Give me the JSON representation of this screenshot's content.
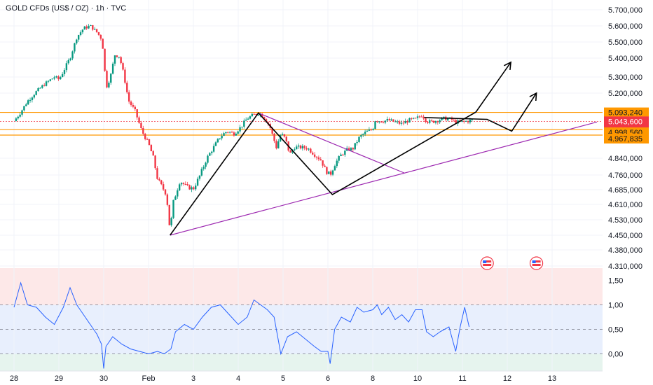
{
  "header": {
    "title": "GOLD CFDs (US$ / OZ) · 1h · TVC"
  },
  "colors": {
    "up": "#089981",
    "down": "#f23645",
    "level": "#ff9800",
    "trendline": "#9c27b0",
    "drawing": "#000000",
    "osc_line": "#2962ff",
    "osc_top_zone": "#fde8e8",
    "osc_mid_zone": "#e8effd",
    "osc_bottom_zone": "#e6f4ee",
    "price_tag": "#f23645"
  },
  "chart_data": [
    {
      "type": "line",
      "subtype": "candlestick",
      "title": "GOLD CFDs (US$ / OZ) · 1h · TVC",
      "x_ticks": [
        "28",
        "29",
        "30",
        "Feb",
        "3",
        "4",
        "5",
        "6",
        "8",
        "10",
        "11",
        "12",
        "13"
      ],
      "y_ticks": [
        "5.700,000",
        "5.600,000",
        "5.500,000",
        "5.400,000",
        "5.300,000",
        "5.200,000",
        "4.840,000",
        "4.760,000",
        "4.685,000",
        "4.610,000",
        "4.530,000",
        "4.450,000",
        "4.380,000",
        "4.310,000"
      ],
      "ylim": [
        4310,
        5700
      ],
      "xlim": [
        0,
        13
      ],
      "close_path": [
        [
          0.0,
          5045
        ],
        [
          0.15,
          5095
        ],
        [
          0.3,
          5155
        ],
        [
          0.5,
          5210
        ],
        [
          0.7,
          5260
        ],
        [
          0.9,
          5300
        ],
        [
          1.0,
          5285
        ],
        [
          1.1,
          5330
        ],
        [
          1.25,
          5400
        ],
        [
          1.4,
          5530
        ],
        [
          1.55,
          5585
        ],
        [
          1.7,
          5600
        ],
        [
          1.85,
          5560
        ],
        [
          1.95,
          5520
        ],
        [
          2.0,
          5430
        ],
        [
          2.05,
          5230
        ],
        [
          2.15,
          5300
        ],
        [
          2.25,
          5420
        ],
        [
          2.35,
          5410
        ],
        [
          2.45,
          5310
        ],
        [
          2.55,
          5160
        ],
        [
          2.7,
          5100
        ],
        [
          2.85,
          4990
        ],
        [
          3.0,
          4920
        ],
        [
          3.1,
          4850
        ],
        [
          3.2,
          4740
        ],
        [
          3.3,
          4700
        ],
        [
          3.4,
          4660
        ],
        [
          3.48,
          4470
        ],
        [
          3.55,
          4620
        ],
        [
          3.7,
          4730
        ],
        [
          3.85,
          4700
        ],
        [
          4.0,
          4690
        ],
        [
          4.15,
          4760
        ],
        [
          4.3,
          4840
        ],
        [
          4.45,
          4900
        ],
        [
          4.6,
          4960
        ],
        [
          4.75,
          4990
        ],
        [
          4.9,
          4975
        ],
        [
          5.05,
          5010
        ],
        [
          5.2,
          5060
        ],
        [
          5.35,
          5080
        ],
        [
          5.45,
          5090
        ],
        [
          5.55,
          5075
        ],
        [
          5.7,
          5020
        ],
        [
          5.85,
          4900
        ],
        [
          5.95,
          4975
        ],
        [
          6.05,
          4950
        ],
        [
          6.15,
          4860
        ],
        [
          6.25,
          4900
        ],
        [
          6.4,
          4900
        ],
        [
          6.55,
          4895
        ],
        [
          6.7,
          4860
        ],
        [
          6.85,
          4830
        ],
        [
          6.95,
          4780
        ],
        [
          7.05,
          4760
        ],
        [
          7.15,
          4810
        ],
        [
          7.3,
          4860
        ],
        [
          7.45,
          4890
        ],
        [
          7.55,
          4890
        ],
        [
          7.7,
          4955
        ],
        [
          7.85,
          4985
        ],
        [
          8.0,
          5000
        ],
        [
          8.05,
          5050
        ],
        [
          8.2,
          5045
        ],
        [
          8.35,
          5050
        ],
        [
          8.5,
          5040
        ],
        [
          8.65,
          5030
        ],
        [
          8.8,
          5050
        ],
        [
          8.95,
          5055
        ],
        [
          9.1,
          5080
        ],
        [
          9.2,
          5045
        ],
        [
          9.3,
          5040
        ],
        [
          9.45,
          5050
        ],
        [
          9.6,
          5060
        ],
        [
          9.75,
          5055
        ],
        [
          9.85,
          5040
        ],
        [
          10.0,
          5040
        ],
        [
          10.1,
          5045
        ],
        [
          10.2,
          5050
        ],
        [
          10.25,
          5055
        ]
      ],
      "price_levels": [
        5093.24,
        5043.6,
        4998.56,
        4967.835
      ],
      "last_price": "5.043,600",
      "countdown": "40:38",
      "level_labels": [
        "5.093,240",
        "4.998,560",
        "4.967,835"
      ],
      "trendlines": [
        {
          "from": [
            3.48,
            4450
          ],
          "to": [
            13.0,
            5040
          ]
        },
        {
          "from": [
            5.45,
            5090
          ],
          "to": [
            8.7,
            4770
          ]
        }
      ],
      "drawing_path": [
        [
          3.48,
          4450
        ],
        [
          5.45,
          5090
        ],
        [
          7.1,
          4660
        ],
        [
          10.3,
          5095
        ],
        [
          11.08,
          5378
        ]
      ],
      "drawing_path_2": [
        [
          9.15,
          5065
        ],
        [
          10.55,
          5055
        ],
        [
          11.1,
          4990
        ],
        [
          11.65,
          5200
        ]
      ],
      "events": [
        {
          "x": 10.55
        },
        {
          "x": 11.65
        }
      ]
    },
    {
      "type": "line",
      "title": "",
      "y_ticks": [
        "1,50",
        "1,00",
        "0,50",
        "0,00"
      ],
      "ylim": [
        -0.35,
        1.75
      ],
      "dashed_levels": [
        1.0,
        0.5,
        0.0
      ],
      "series": [
        {
          "points": [
            [
              0.0,
              0.95
            ],
            [
              0.15,
              1.45
            ],
            [
              0.3,
              1.0
            ],
            [
              0.5,
              0.95
            ],
            [
              0.7,
              0.75
            ],
            [
              0.9,
              0.6
            ],
            [
              1.1,
              0.95
            ],
            [
              1.25,
              1.35
            ],
            [
              1.4,
              1.0
            ],
            [
              1.55,
              0.8
            ],
            [
              1.7,
              0.6
            ],
            [
              1.85,
              0.4
            ],
            [
              1.95,
              0.2
            ],
            [
              2.0,
              -0.3
            ],
            [
              2.05,
              0.15
            ],
            [
              2.2,
              0.35
            ],
            [
              2.4,
              0.2
            ],
            [
              2.6,
              0.1
            ],
            [
              2.8,
              0.05
            ],
            [
              3.0,
              0.0
            ],
            [
              3.2,
              0.05
            ],
            [
              3.35,
              0.0
            ],
            [
              3.5,
              0.1
            ],
            [
              3.6,
              0.45
            ],
            [
              3.8,
              0.6
            ],
            [
              4.0,
              0.5
            ],
            [
              4.2,
              0.75
            ],
            [
              4.4,
              0.95
            ],
            [
              4.6,
              1.0
            ],
            [
              4.8,
              0.8
            ],
            [
              5.0,
              0.6
            ],
            [
              5.2,
              0.75
            ],
            [
              5.35,
              1.1
            ],
            [
              5.5,
              1.0
            ],
            [
              5.65,
              0.9
            ],
            [
              5.8,
              0.75
            ],
            [
              5.95,
              0.0
            ],
            [
              6.1,
              0.35
            ],
            [
              6.3,
              0.45
            ],
            [
              6.5,
              0.3
            ],
            [
              6.7,
              0.15
            ],
            [
              6.85,
              0.05
            ],
            [
              7.0,
              0.05
            ],
            [
              7.05,
              -0.2
            ],
            [
              7.15,
              0.5
            ],
            [
              7.3,
              0.75
            ],
            [
              7.5,
              0.65
            ],
            [
              7.65,
              0.95
            ],
            [
              7.8,
              0.85
            ],
            [
              8.0,
              0.9
            ],
            [
              8.1,
              1.0
            ],
            [
              8.2,
              0.8
            ],
            [
              8.35,
              0.95
            ],
            [
              8.5,
              0.7
            ],
            [
              8.65,
              0.8
            ],
            [
              8.8,
              0.65
            ],
            [
              8.95,
              0.9
            ],
            [
              9.1,
              0.9
            ],
            [
              9.2,
              0.45
            ],
            [
              9.35,
              0.35
            ],
            [
              9.5,
              0.45
            ],
            [
              9.7,
              0.55
            ],
            [
              9.85,
              0.05
            ],
            [
              9.95,
              0.55
            ],
            [
              10.05,
              0.95
            ],
            [
              10.15,
              0.55
            ]
          ]
        }
      ]
    }
  ]
}
